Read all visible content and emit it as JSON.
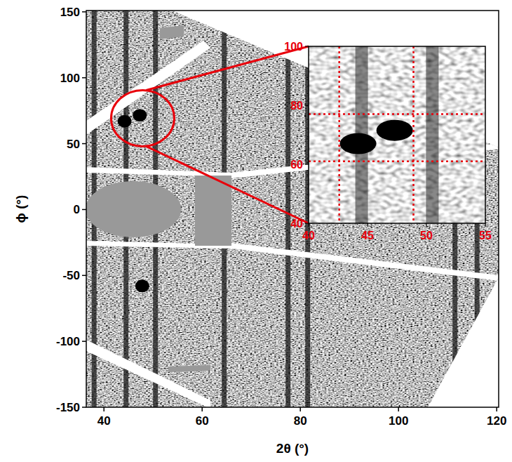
{
  "chart_data": {
    "type": "image",
    "xlabel": "2θ (°)",
    "ylabel": "ϕ (°)",
    "xlim": [
      36.4,
      120.4
    ],
    "ylim": [
      -150,
      151
    ],
    "xticks": [
      40,
      60,
      80,
      100,
      120
    ],
    "yticks": [
      -150,
      -100,
      -50,
      0,
      50,
      100,
      150
    ],
    "color": "#111111",
    "rings": [
      38,
      44.5,
      50.5,
      64.5,
      77.5,
      81.5,
      111.5,
      116
    ],
    "spots": [
      {
        "x": 44.2,
        "y": 67
      },
      {
        "x": 47.3,
        "y": 71.5
      },
      {
        "x": 47.8,
        "y": -58
      }
    ],
    "inset": {
      "xlim": [
        40,
        55
      ],
      "ylim": [
        40,
        100
      ],
      "xticks": [
        40,
        45,
        50,
        55
      ],
      "yticks": [
        40,
        60,
        80,
        100
      ],
      "color": "#e8000b",
      "guides": {
        "x": [
          42.6,
          48.9
        ],
        "y": [
          61,
          77
        ]
      }
    }
  }
}
